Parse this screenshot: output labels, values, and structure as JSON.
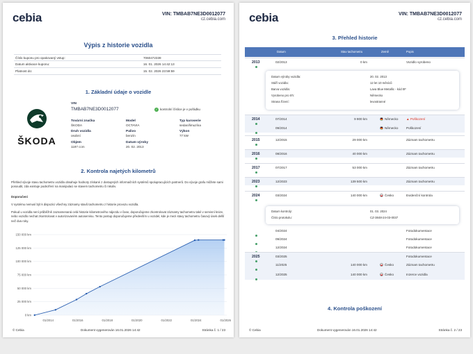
{
  "brand": "cebia",
  "vin_header": "VIN: TMBAB7NE3D0012077",
  "website": "cz.cebia.com",
  "page1": {
    "title": "Výpis z historie vozidla",
    "info_rows": [
      {
        "label": "Číslo kuponu pro opakovaný vstup:",
        "value": "7060472339"
      },
      {
        "label": "Datum aktivace kuponu:",
        "value": "16. 01. 2026 14:42:13"
      },
      {
        "label": "Platnost do:",
        "value": "15. 02. 2026 23:59:59"
      }
    ],
    "section1_title": "1. Základní údaje o vozidle",
    "make_logo_word": "ŠKODA",
    "vin_label": "VIN",
    "vin_value": "TMBAB7NE3D0012077",
    "vin_check": "kontrolní číslice je v pořádku",
    "fields": [
      {
        "label": "Tovární značka",
        "value": "ŠKODA"
      },
      {
        "label": "Model",
        "value": "OCTAVIA"
      },
      {
        "label": "Typ karoserie",
        "value": "sedan/limuzína"
      },
      {
        "label": "Druh vozidla",
        "value": "osobní"
      },
      {
        "label": "Palivo",
        "value": "benzín"
      },
      {
        "label": "Výkon",
        "value": "77 kW"
      },
      {
        "label": "Objem",
        "value": "1197 ccm"
      },
      {
        "label": "Datum výroby",
        "value": "20. 02. 2013"
      }
    ],
    "section2_title": "2. Kontrola najetých kilometrů",
    "para1": "Přehled vývoje stavu tachometru vozidla obsahuje hodnoty získané z dostupných informačních systémů spolupracujících partnerů. Do vývoje grafu můžete sami posoudit, zda existuje podezření na manipulaci se stavem tachometru či nikoliv.",
    "doporuceni": "Doporučení",
    "para2": "V systému nemusí být k dispozici všechny záznamy stavů tachometru z historie provozu vozidla.",
    "para3": "Pokud u vozidla není průběžně zaznamenaná celá historie kilometrového nájezdu v čase, doporučujeme zkontrolovat záznamy tachometru také v servisní knize, nebo vozidlo nechat zkontrolovat v autorizovaném autoservisu. Tento postup doporučujeme především u vozidel, kde je mezi stavy tachometru časový úsek delší než dva roky.",
    "footer_left": "© Cebia",
    "footer_center": "Dokument vygenerován 16.01.2026 14:42",
    "footer_right": "Stránka č. 1 / 23"
  },
  "chart_data": {
    "type": "area",
    "x": [
      "2013-02",
      "2014-07",
      "2015-12",
      "2016-08",
      "2017-07",
      "2023-12",
      "2024-03",
      "2025-11",
      "2025-12"
    ],
    "y": [
      0,
      9900,
      29000,
      40000,
      53000,
      139500,
      140000,
      140000,
      140000
    ],
    "x_tick_labels": [
      "01/2014",
      "01/2016",
      "01/2018",
      "01/2020",
      "01/2022",
      "01/2024",
      "01/2026"
    ],
    "y_tick_labels": [
      "0 km",
      "25 000 km",
      "50 000 km",
      "75 000 km",
      "100 000 km",
      "125 000 km",
      "150 000 km"
    ],
    "ylim": [
      0,
      150000
    ],
    "color": "#2a5fb0"
  },
  "page2": {
    "section3_title": "3. Přehled historie",
    "columns": [
      "Datum",
      "Stav tachometru",
      "Země",
      "Popis"
    ],
    "rows": [
      {
        "year": "2013",
        "date": "02/2013",
        "km": "0 km",
        "country": "",
        "flag": "",
        "desc": "Vozidlo vyrobeno",
        "warn": false
      },
      {
        "year": "2014",
        "date": "07/2014",
        "km": "9 900 km",
        "country": "Německo",
        "flag": "de",
        "desc": "Poškození",
        "warn": true
      },
      {
        "year": "",
        "date": "09/2014",
        "km": "",
        "country": "Německo",
        "flag": "de",
        "desc": "Poškození",
        "warn": false
      },
      {
        "year": "2015",
        "date": "12/2015",
        "km": "29 000 km",
        "country": "",
        "flag": "",
        "desc": "Záznam tachometru",
        "warn": false
      },
      {
        "year": "2016",
        "date": "08/2016",
        "km": "40 000 km",
        "country": "",
        "flag": "",
        "desc": "Záznam tachometru",
        "warn": false
      },
      {
        "year": "2017",
        "date": "07/2017",
        "km": "53 000 km",
        "country": "",
        "flag": "",
        "desc": "Záznam tachometru",
        "warn": false
      },
      {
        "year": "2023",
        "date": "12/2023",
        "km": "139 500 km",
        "country": "",
        "flag": "",
        "desc": "Záznam tachometru",
        "warn": false
      },
      {
        "year": "2024",
        "date": "03/2024",
        "km": "140 000 km",
        "country": "Česko",
        "flag": "cz",
        "desc": "Evidenční kontrola",
        "warn": false
      },
      {
        "year": "",
        "date": "04/2024",
        "km": "",
        "country": "",
        "flag": "",
        "desc": "Fotodokumentace",
        "warn": false
      },
      {
        "year": "",
        "date": "09/2024",
        "km": "",
        "country": "",
        "flag": "",
        "desc": "Fotodokumentace",
        "warn": false
      },
      {
        "year": "",
        "date": "12/2024",
        "km": "",
        "country": "",
        "flag": "",
        "desc": "Fotodokumentace",
        "warn": false
      },
      {
        "year": "2025",
        "date": "03/2025",
        "km": "",
        "country": "",
        "flag": "",
        "desc": "Fotodokumentace",
        "warn": false
      },
      {
        "year": "",
        "date": "11/2025",
        "km": "140 000 km",
        "country": "Česko",
        "flag": "cz",
        "desc": "Záznam tachometru",
        "warn": false
      },
      {
        "year": "",
        "date": "12/2025",
        "km": "140 000 km",
        "country": "Česko",
        "flag": "cz",
        "desc": "Inzerce vozidla",
        "warn": false
      }
    ],
    "production_detail": [
      {
        "label": "Datum výroby vozidla:",
        "value": "20. 02. 2013"
      },
      {
        "label": "Stáří vozidla:",
        "value": "12 let 10 měsíců"
      },
      {
        "label": "Barva vozidla:",
        "value": "Lava Blue Metallic - kód 0F"
      },
      {
        "label": "Vyrobeno pro trh:",
        "value": "Německo"
      },
      {
        "label": "Strana řízení:",
        "value": "levostranné"
      }
    ],
    "inspection_detail": [
      {
        "label": "Datum kontroly:",
        "value": "01. 03. 2024"
      },
      {
        "label": "Číslo protokolu:",
        "value": "CZ-3848-24-03-0037"
      }
    ],
    "section4_title": "4. Kontrola poškození",
    "footer_left": "© Cebia",
    "footer_center": "Dokument vygenerován 16.01.2026 14:42",
    "footer_right": "Stránka č. 2 / 23"
  }
}
